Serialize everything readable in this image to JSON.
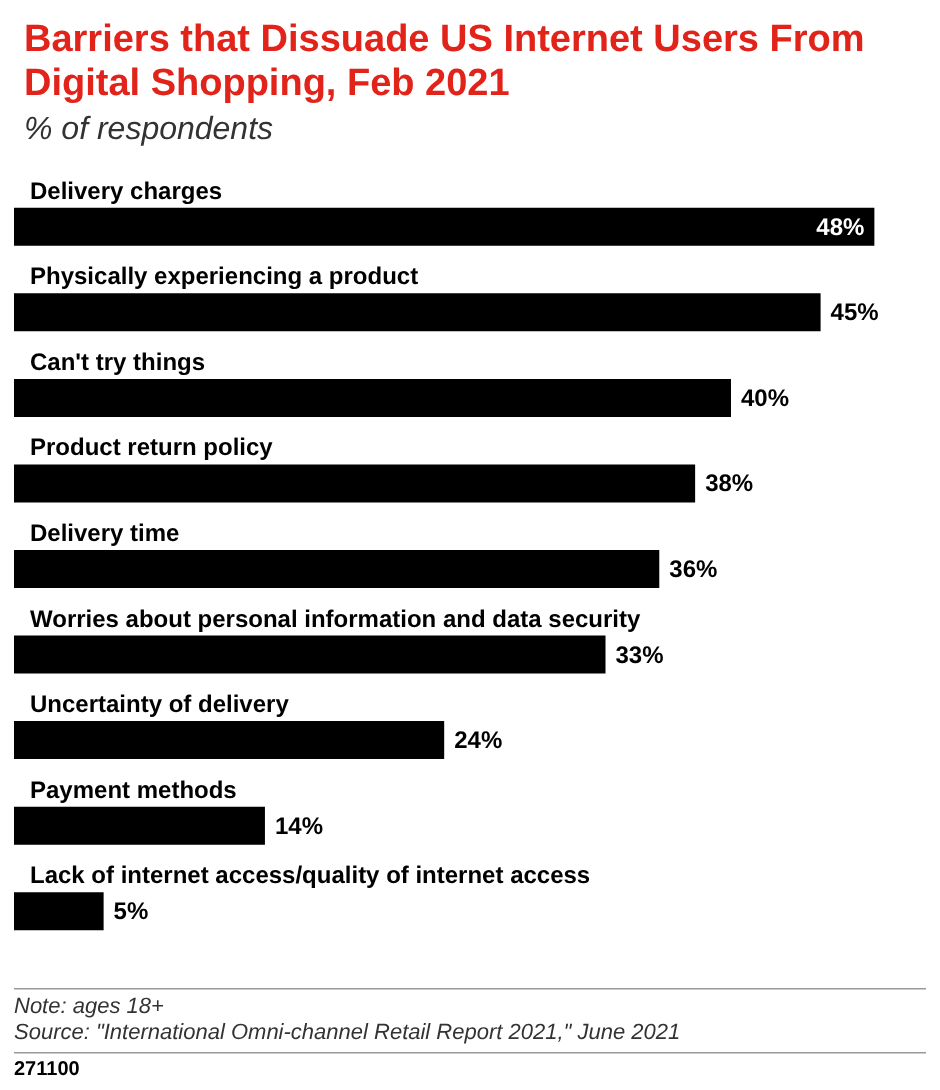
{
  "chart_data": {
    "type": "bar",
    "orientation": "horizontal",
    "title": "Barriers that Dissuade US Internet Users From Digital Shopping, Feb 2021",
    "subtitle": "% of respondents",
    "categories": [
      "Delivery charges",
      "Physically experiencing a product",
      "Can't try things",
      "Product return policy",
      "Delivery time",
      "Worries about personal information and data security",
      "Uncertainty of delivery",
      "Payment methods",
      "Lack of internet access/quality of internet access"
    ],
    "values": [
      48,
      45,
      40,
      38,
      36,
      33,
      24,
      14,
      5
    ],
    "value_labels": [
      "48%",
      "45%",
      "40%",
      "38%",
      "36%",
      "33%",
      "24%",
      "14%",
      "5%"
    ],
    "color": "#000000",
    "annotations": [
      "Note: ages 18+",
      "Source: \"International Omni-channel Retail Report 2021,\" June 2021",
      "271100"
    ]
  }
}
